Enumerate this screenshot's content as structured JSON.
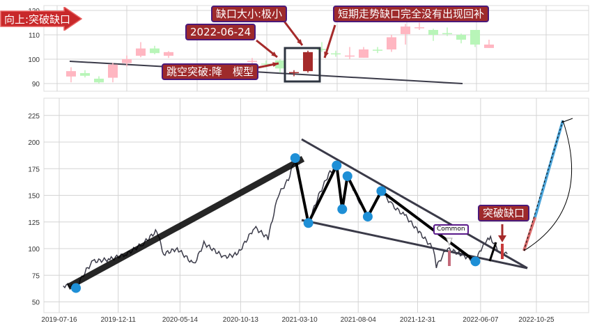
{
  "colors": {
    "up": "#ffb6c1",
    "down": "#b8f5b8",
    "gap": "#a52a2a",
    "line": "#3a3a48",
    "pivot": "#1e8fd6",
    "label_bg": "#9e2a2b"
  },
  "annotations": {
    "breakout_direction": "向上:突破缺口",
    "gap_size": "缺口大小:极小",
    "gap_date": "2022-06-24",
    "gap_fill": "短期走势缺口完全没有出现回补",
    "pattern": "跳空突破:降　楔型",
    "breakout_gap": "突破缺口",
    "common": "Common"
  },
  "chart_data": [
    {
      "type": "candlestick",
      "yticks": [
        90,
        100,
        110,
        120
      ],
      "ylim": [
        87,
        121
      ],
      "grid": true,
      "candles": [
        {
          "i": 0,
          "o": 95.1,
          "h": 96.7,
          "l": 90.5,
          "c": 92.9,
          "t": "up"
        },
        {
          "i": 1,
          "o": 94.3,
          "h": 95.5,
          "l": 92.5,
          "c": 93.2,
          "t": "down"
        },
        {
          "i": 2,
          "o": 92.0,
          "h": 93.0,
          "l": 90.0,
          "c": 90.5,
          "t": "down"
        },
        {
          "i": 3,
          "o": 92.4,
          "h": 98.5,
          "l": 90.5,
          "c": 97.8,
          "t": "up"
        },
        {
          "i": 4,
          "o": 98.4,
          "h": 101.5,
          "l": 97.0,
          "c": 100.0,
          "t": "up"
        },
        {
          "i": 5,
          "o": 101.4,
          "h": 107.0,
          "l": 100.8,
          "c": 104.4,
          "t": "up"
        },
        {
          "i": 6,
          "o": 104.4,
          "h": 105.5,
          "l": 102.0,
          "c": 102.5,
          "t": "down"
        },
        {
          "i": 7,
          "o": 101.4,
          "h": 103.3,
          "l": 100.5,
          "c": 102.9,
          "t": "up"
        },
        {
          "i": 13,
          "o": 99.0,
          "h": 100.5,
          "l": 97.0,
          "c": 99.3,
          "t": "up"
        },
        {
          "i": 14,
          "o": 98.2,
          "h": 99.5,
          "l": 96.5,
          "c": 97.8,
          "t": "down"
        },
        {
          "i": 15,
          "o": 99.5,
          "h": 100.0,
          "l": 94.5,
          "c": 96.2,
          "t": "down"
        },
        {
          "i": 16,
          "o": 94.5,
          "h": 95.5,
          "l": 93.0,
          "c": 94.7,
          "t": "gap"
        },
        {
          "i": 17,
          "o": 95.1,
          "h": 103.5,
          "l": 94.5,
          "c": 102.9,
          "t": "gap"
        },
        {
          "i": 18,
          "o": 104.0,
          "h": 107.0,
          "l": 103.0,
          "c": 104.2,
          "t": "down"
        },
        {
          "i": 19,
          "o": 102.4,
          "h": 103.5,
          "l": 101.0,
          "c": 102.2,
          "t": "down"
        },
        {
          "i": 20,
          "o": 101.4,
          "h": 105.0,
          "l": 100.0,
          "c": 101.5,
          "t": "up"
        },
        {
          "i": 21,
          "o": 100.6,
          "h": 105.0,
          "l": 100.6,
          "c": 104.0,
          "t": "up"
        },
        {
          "i": 22,
          "o": 103.9,
          "h": 105.0,
          "l": 102.5,
          "c": 103.6,
          "t": "down"
        },
        {
          "i": 23,
          "o": 104.0,
          "h": 110.0,
          "l": 103.0,
          "c": 109.0,
          "t": "up"
        },
        {
          "i": 24,
          "o": 110.3,
          "h": 114.5,
          "l": 106.0,
          "c": 113.4,
          "t": "up"
        },
        {
          "i": 25,
          "o": 113.0,
          "h": 115.0,
          "l": 112.0,
          "c": 113.1,
          "t": "up"
        },
        {
          "i": 26,
          "o": 112.0,
          "h": 112.5,
          "l": 107.5,
          "c": 110.0,
          "t": "down"
        },
        {
          "i": 27,
          "o": 110.7,
          "h": 113.0,
          "l": 109.5,
          "c": 110.5,
          "t": "down"
        },
        {
          "i": 28,
          "o": 110.0,
          "h": 110.5,
          "l": 106.5,
          "c": 108.0,
          "t": "down"
        },
        {
          "i": 29,
          "o": 112.0,
          "h": 112.0,
          "l": 105.0,
          "c": 106.0,
          "t": "down"
        },
        {
          "i": 30,
          "o": 104.6,
          "h": 108.0,
          "l": 104.6,
          "c": 106.0,
          "t": "up"
        }
      ]
    },
    {
      "type": "line",
      "xticks": [
        "2019-07-16",
        "2019-12-11",
        "2020-05-14",
        "2020-10-13",
        "2021-03-10",
        "2021-08-04",
        "2021-12-31",
        "2022-06-07",
        "2022-10-25"
      ],
      "yticks": [
        50,
        75,
        100,
        125,
        150,
        175,
        200,
        225
      ],
      "ylim": [
        40,
        240
      ],
      "grid": true,
      "price": [
        [
          "2019-07-26",
          65
        ],
        [
          "2019-08-07",
          66
        ],
        [
          "2019-08-27",
          63
        ],
        [
          "2019-09-22",
          80
        ],
        [
          "2019-10-09",
          88
        ],
        [
          "2019-11-20",
          90
        ],
        [
          "2020-01-01",
          95
        ],
        [
          "2020-02-12",
          105
        ],
        [
          "2020-03-17",
          117
        ],
        [
          "2020-04-03",
          95
        ],
        [
          "2020-05-07",
          100
        ],
        [
          "2020-06-18",
          85
        ],
        [
          "2020-07-13",
          105
        ],
        [
          "2020-09-02",
          92
        ],
        [
          "2020-10-06",
          95
        ],
        [
          "2020-11-17",
          120
        ],
        [
          "2020-12-21",
          110
        ],
        [
          "2021-01-15",
          150
        ],
        [
          "2021-02-10",
          165
        ],
        [
          "2021-02-27",
          185
        ],
        [
          "2021-03-15",
          155
        ],
        [
          "2021-04-01",
          124
        ],
        [
          "2021-04-27",
          150
        ],
        [
          "2021-05-22",
          170
        ],
        [
          "2021-06-11",
          178
        ],
        [
          "2021-06-25",
          137
        ],
        [
          "2021-07-08",
          168
        ],
        [
          "2021-08-06",
          145
        ],
        [
          "2021-08-28",
          130
        ],
        [
          "2021-10-01",
          154
        ],
        [
          "2021-10-30",
          140
        ],
        [
          "2021-12-02",
          130
        ],
        [
          "2022-01-05",
          115
        ],
        [
          "2022-02-08",
          100
        ],
        [
          "2022-02-16",
          83
        ],
        [
          "2022-03-14",
          100
        ],
        [
          "2022-04-17",
          95
        ],
        [
          "2022-05-25",
          88
        ],
        [
          "2022-06-15",
          105
        ],
        [
          "2022-07-02",
          110
        ],
        [
          "2022-07-27",
          95
        ],
        [
          "2022-08-13",
          95
        ]
      ],
      "pivots": [
        [
          "2019-08-27",
          63
        ],
        [
          "2021-02-27",
          185
        ],
        [
          "2021-04-01",
          124
        ],
        [
          "2021-06-11",
          178
        ],
        [
          "2021-06-25",
          137
        ],
        [
          "2021-07-08",
          168
        ],
        [
          "2021-08-28",
          130
        ],
        [
          "2021-10-01",
          154
        ],
        [
          "2022-05-25",
          88
        ]
      ]
    }
  ]
}
